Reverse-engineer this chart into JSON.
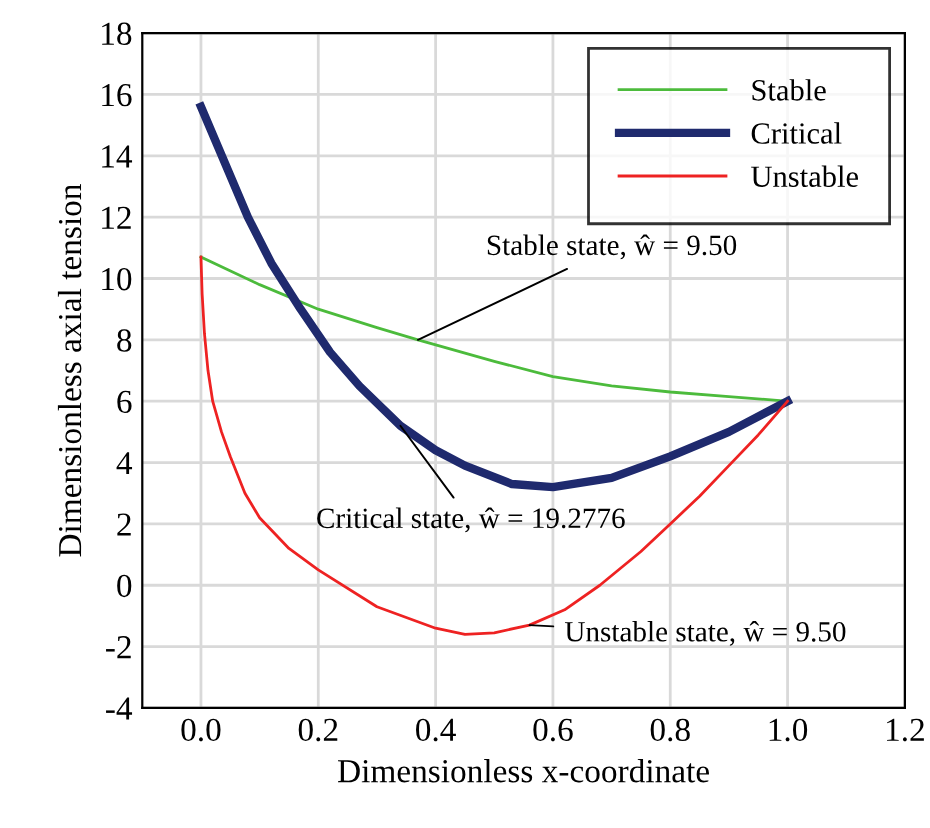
{
  "chart_data": {
    "type": "line",
    "xlabel": "Dimensionless x-coordinate",
    "ylabel": "Dimensionless axial tension",
    "xlim": [
      -0.1,
      1.2
    ],
    "ylim": [
      -4,
      18
    ],
    "xticks": [
      {
        "value": 0,
        "label": "0.0"
      },
      {
        "value": 0.2,
        "label": "0.2"
      },
      {
        "value": 0.4,
        "label": "0.4"
      },
      {
        "value": 0.6,
        "label": "0.6"
      },
      {
        "value": 0.8,
        "label": "0.8"
      },
      {
        "value": 1,
        "label": "1.0"
      },
      {
        "value": 1.2,
        "label": "1.2"
      }
    ],
    "yticks": [
      -4,
      -2,
      0,
      2,
      4,
      6,
      8,
      10,
      12,
      14,
      16,
      18
    ],
    "grid": true,
    "legend": "top right",
    "marker": "none",
    "line_style": "solid",
    "series": [
      {
        "name": "Stable",
        "color": "#4cbb3c",
        "x": [
          0,
          0.1,
          0.2,
          0.3,
          0.37,
          0.5,
          0.6,
          0.7,
          0.8,
          0.9,
          1.0
        ],
        "values": [
          10.7,
          9.8,
          9.0,
          8.4,
          8.0,
          7.3,
          6.8,
          6.5,
          6.3,
          6.15,
          6.0
        ]
      },
      {
        "name": "Critical",
        "color": "#1f2a6e",
        "x": [
          0,
          0.04,
          0.08,
          0.12,
          0.17,
          0.22,
          0.27,
          0.34,
          0.4,
          0.45,
          0.53,
          0.6,
          0.7,
          0.8,
          0.9,
          1.0
        ],
        "values": [
          15.6,
          13.8,
          12.0,
          10.5,
          9.0,
          7.6,
          6.5,
          5.2,
          4.4,
          3.9,
          3.3,
          3.2,
          3.5,
          4.2,
          5.0,
          6.0
        ]
      },
      {
        "name": "Unstable",
        "color": "#ee2222",
        "x": [
          0,
          0.002,
          0.006,
          0.012,
          0.02,
          0.035,
          0.05,
          0.075,
          0.1,
          0.15,
          0.2,
          0.3,
          0.4,
          0.45,
          0.5,
          0.56,
          0.62,
          0.68,
          0.75,
          0.8,
          0.85,
          0.9,
          0.95,
          1.0
        ],
        "values": [
          10.7,
          9.5,
          8.2,
          7.0,
          6.0,
          5.0,
          4.2,
          3.0,
          2.2,
          1.2,
          0.5,
          -0.7,
          -1.4,
          -1.6,
          -1.55,
          -1.3,
          -0.8,
          0.0,
          1.1,
          2.0,
          2.9,
          3.9,
          4.9,
          6.0
        ]
      }
    ],
    "annotations": [
      {
        "text": "Stable state, ŵ = 9.50",
        "x": 0.37,
        "y": 8.0
      },
      {
        "text": "Critical state, ŵ = 19.2776",
        "x": 0.34,
        "y": 5.2
      },
      {
        "text": "Unstable state, ŵ = 9.50",
        "x": 0.56,
        "y": -1.3
      }
    ]
  }
}
